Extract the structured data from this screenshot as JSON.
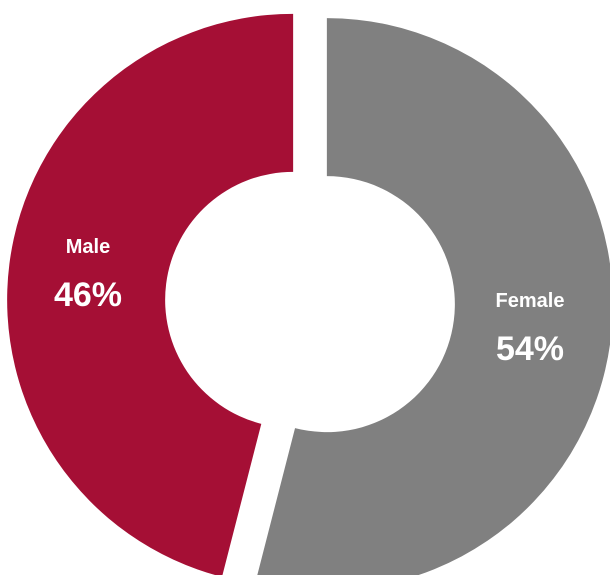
{
  "chart_data": {
    "type": "pie",
    "variant": "donut",
    "exploded": true,
    "legend": "none",
    "slices": [
      {
        "name": "Female",
        "value": 54,
        "label": "54%",
        "color": "#808080"
      },
      {
        "name": "Male",
        "value": 46,
        "label": "46%",
        "color": "#A50F35"
      }
    ]
  }
}
